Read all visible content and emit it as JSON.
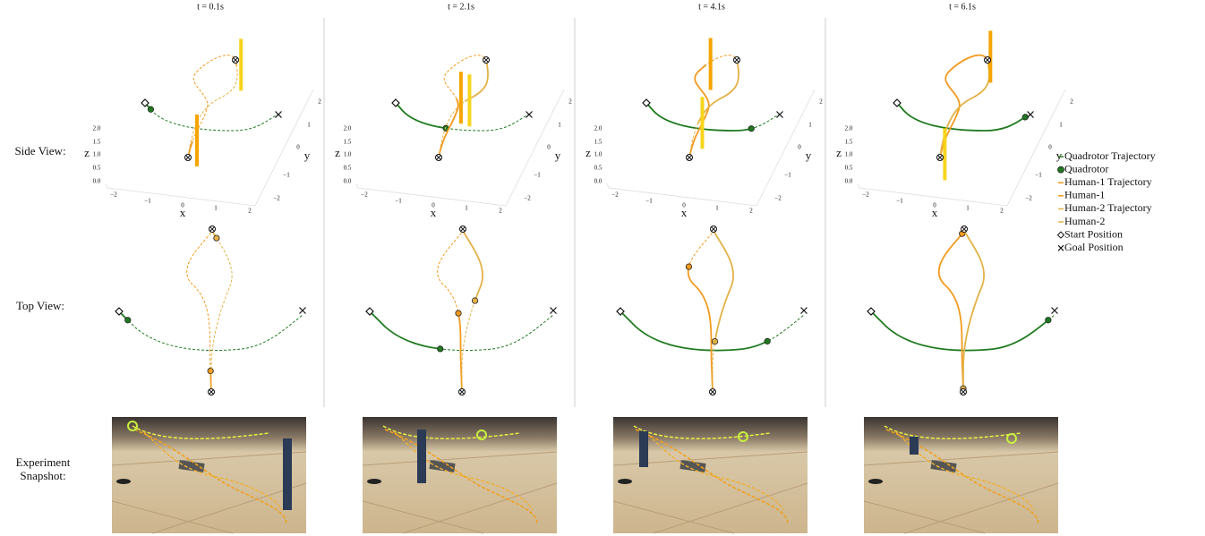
{
  "column_titles": [
    "t = 0.1s",
    "t = 2.1s",
    "t = 4.1s",
    "t = 6.1s"
  ],
  "row_labels": {
    "side": "Side View:",
    "top": "Top View:",
    "snapshot": [
      "Experiment",
      "Snapshot:"
    ]
  },
  "axes": {
    "x_label": "x",
    "y_label": "y",
    "z_label": "z",
    "x_ticks": [
      "−2",
      "−1",
      "0",
      "1",
      "2"
    ],
    "y_ticks": [
      "2",
      "1",
      "0",
      "−1",
      "−2"
    ],
    "z_ticks": [
      "2.0",
      "1.5",
      "1.0",
      "0.5",
      "0.0"
    ]
  },
  "legend": [
    "Quadrotor Trajectory",
    "Quadrotor",
    "Human-1 Trajectory",
    "Human-1",
    "Human-2 Trajectory",
    "Human-2",
    "Start Position",
    "Goal Position"
  ]
}
